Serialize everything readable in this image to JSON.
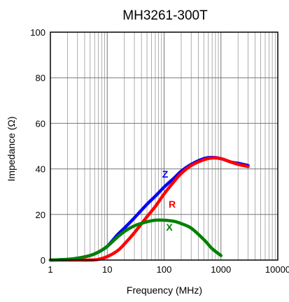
{
  "chart_data": {
    "type": "line",
    "title": "MH3261-300T",
    "xlabel": "Frequency (MHz)",
    "ylabel": "Impedance (Ω)",
    "xscale": "log",
    "xlim": [
      1,
      10000
    ],
    "ylim": [
      0,
      100
    ],
    "grid": true,
    "x_ticks": [
      1,
      10,
      100,
      1000,
      10000
    ],
    "x_tick_labels": [
      "1",
      "10",
      "100",
      "1000",
      "10000"
    ],
    "y_ticks": [
      0,
      20,
      40,
      60,
      80,
      100
    ],
    "y_tick_labels": [
      "0",
      "20",
      "40",
      "60",
      "80",
      "100"
    ],
    "series": [
      {
        "name": "Z",
        "color": "#0000ff",
        "x": [
          1,
          2,
          3,
          5,
          7,
          10,
          15,
          20,
          30,
          50,
          70,
          100,
          150,
          200,
          300,
          500,
          700,
          1000,
          1500,
          2000,
          3000
        ],
        "y": [
          0,
          0.3,
          0.8,
          2,
          3.5,
          6,
          11,
          14,
          18.5,
          24.5,
          28,
          32,
          36,
          39,
          42,
          44.5,
          45,
          44.5,
          43,
          42.5,
          41.5
        ]
      },
      {
        "name": "R",
        "color": "#ff0000",
        "x": [
          1,
          3,
          5,
          7,
          10,
          15,
          20,
          30,
          50,
          70,
          100,
          150,
          200,
          300,
          500,
          700,
          1000,
          1500,
          2000,
          3000
        ],
        "y": [
          0,
          0,
          0,
          0.3,
          1.5,
          4,
          7,
          12,
          19,
          23.5,
          29,
          34.5,
          38,
          41.5,
          44,
          44.8,
          44.5,
          43,
          42,
          41
        ]
      },
      {
        "name": "X",
        "color": "#008000",
        "x": [
          1,
          2,
          3,
          5,
          7,
          10,
          15,
          20,
          30,
          50,
          70,
          100,
          150,
          200,
          300,
          500,
          700,
          1000
        ],
        "y": [
          0,
          0.3,
          0.8,
          2,
          3.5,
          6,
          10,
          12.5,
          15,
          16.8,
          17.5,
          17.5,
          17,
          16,
          14,
          9,
          5,
          2
        ]
      }
    ]
  }
}
